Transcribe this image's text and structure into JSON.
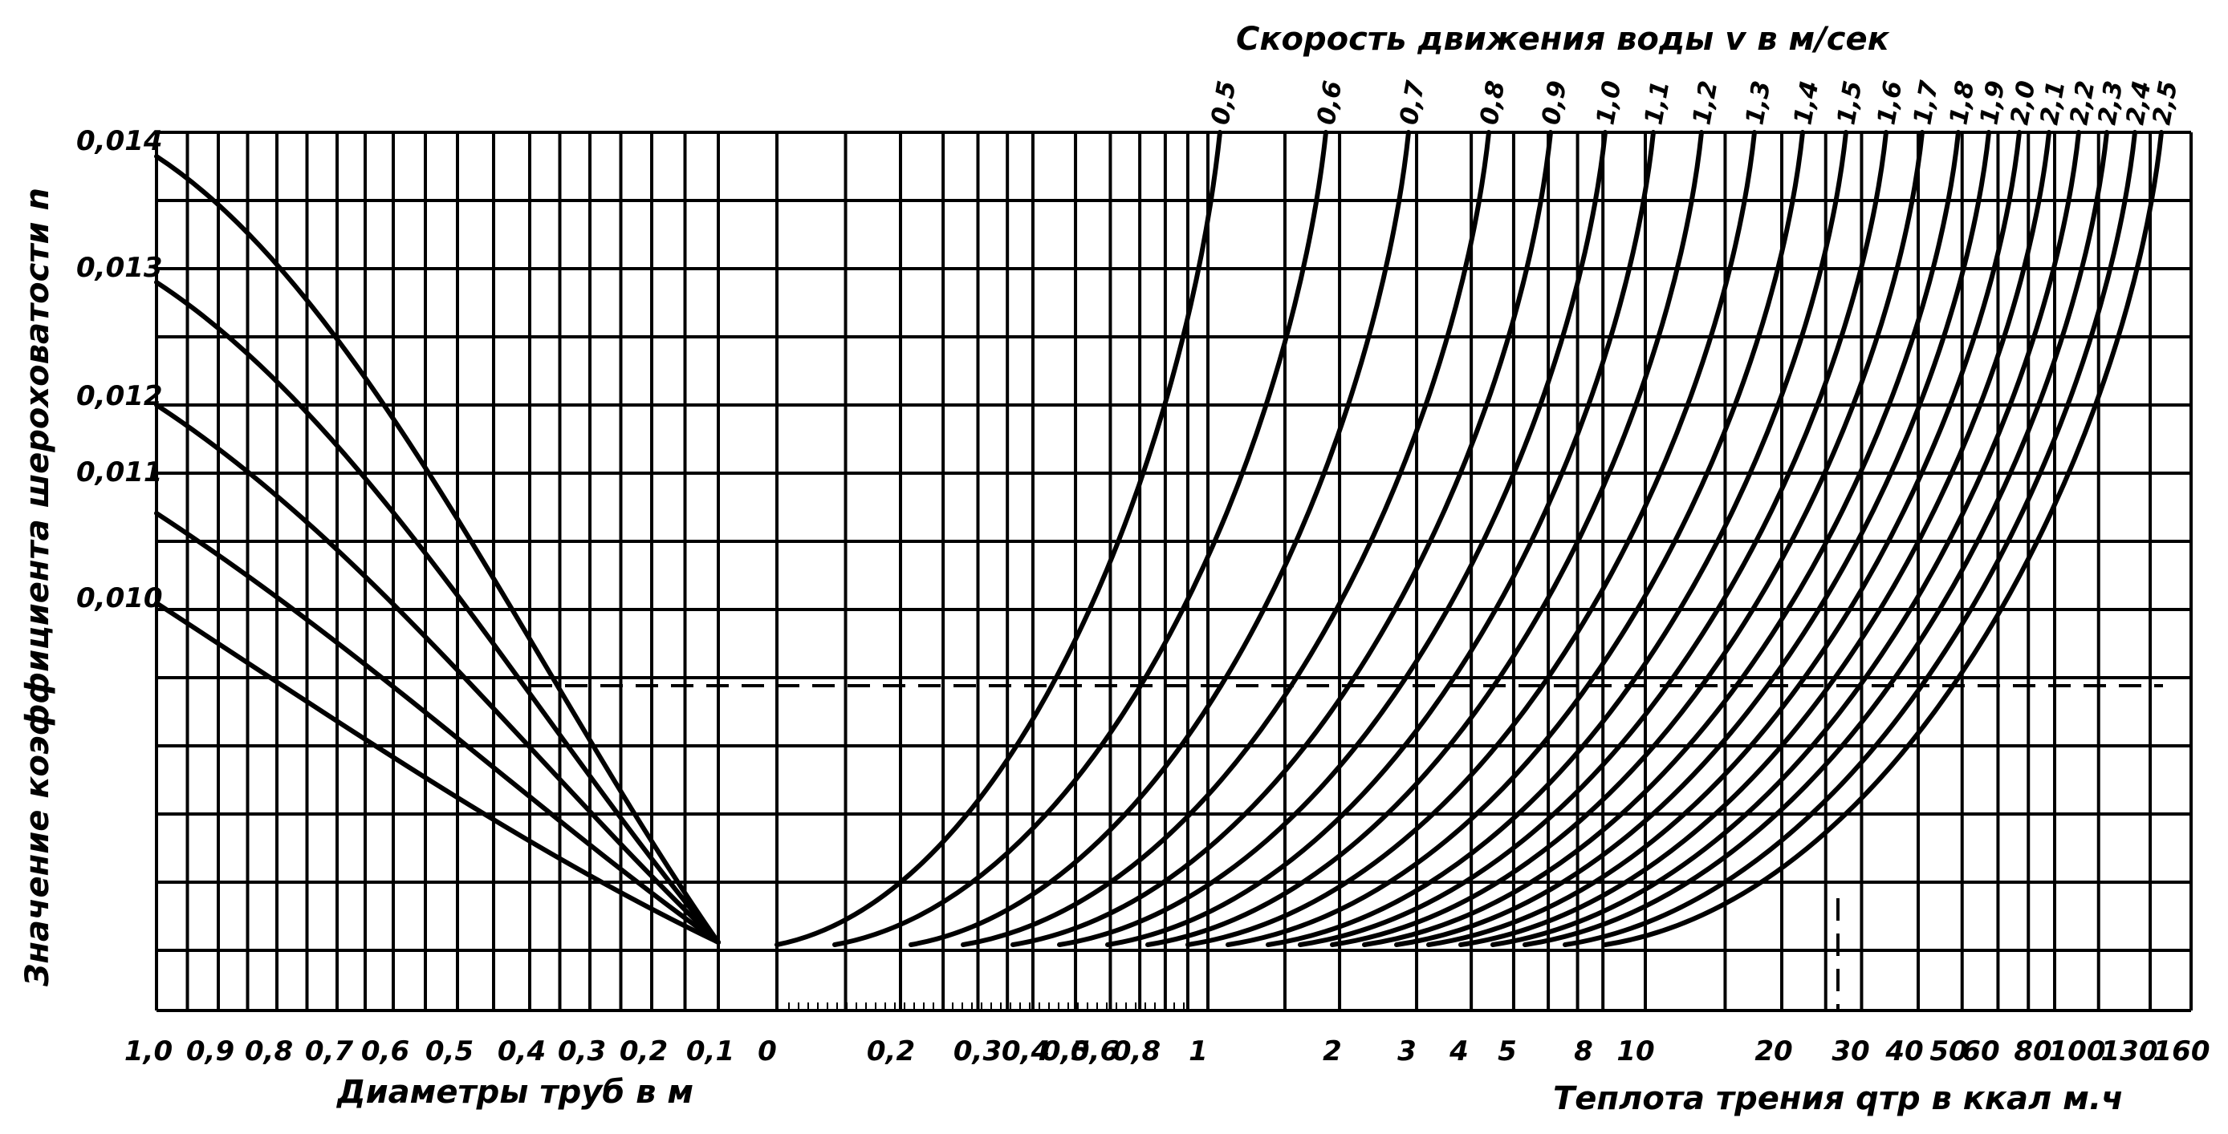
{
  "chart_data": {
    "type": "line",
    "title": "Скорость движения воды v в м/сек",
    "ylabel": "Значение коэффициента шероховатости n",
    "y_ticks": [
      "0,014",
      "0,013",
      "0,012",
      "0,011",
      "0,010"
    ],
    "left_panel": {
      "xlabel": "Диаметры труб в м",
      "x_ticks": [
        "1,0",
        "0,9",
        "0,8",
        "0,7",
        "0,6",
        "0,5",
        "0,4",
        "0,3",
        "0,2",
        "0,1"
      ],
      "series": [
        {
          "n_at_1m": 0.014
        },
        {
          "n_at_1m": 0.013
        },
        {
          "n_at_1m": 0.012
        },
        {
          "n_at_1m": 0.011
        },
        {
          "n_at_1m": 0.01
        }
      ]
    },
    "right_panel": {
      "xlabel": "Теплота трения qтр в ккал м.ч",
      "x_scale": "log",
      "x_ticks": [
        "0",
        "0,2",
        "0,3",
        "0,4",
        "0,5",
        "0,6",
        "0,8",
        "1",
        "2",
        "3",
        "4",
        "5",
        "8",
        "10",
        "20",
        "30",
        "40",
        "50",
        "60",
        "80",
        "100",
        "130",
        "160"
      ],
      "velocity_labels": [
        "0,5",
        "0,6",
        "0,7",
        "0,8",
        "0,9",
        "1,0",
        "1,1",
        "1,2",
        "1,3",
        "1,4",
        "1,5",
        "1,6",
        "1,7",
        "1,8",
        "1,9",
        "2,0",
        "2,1",
        "2,2",
        "2,3",
        "2,4",
        "2,5"
      ]
    },
    "example_path": {
      "diameter_m": 0.4
    },
    "grid": true
  }
}
